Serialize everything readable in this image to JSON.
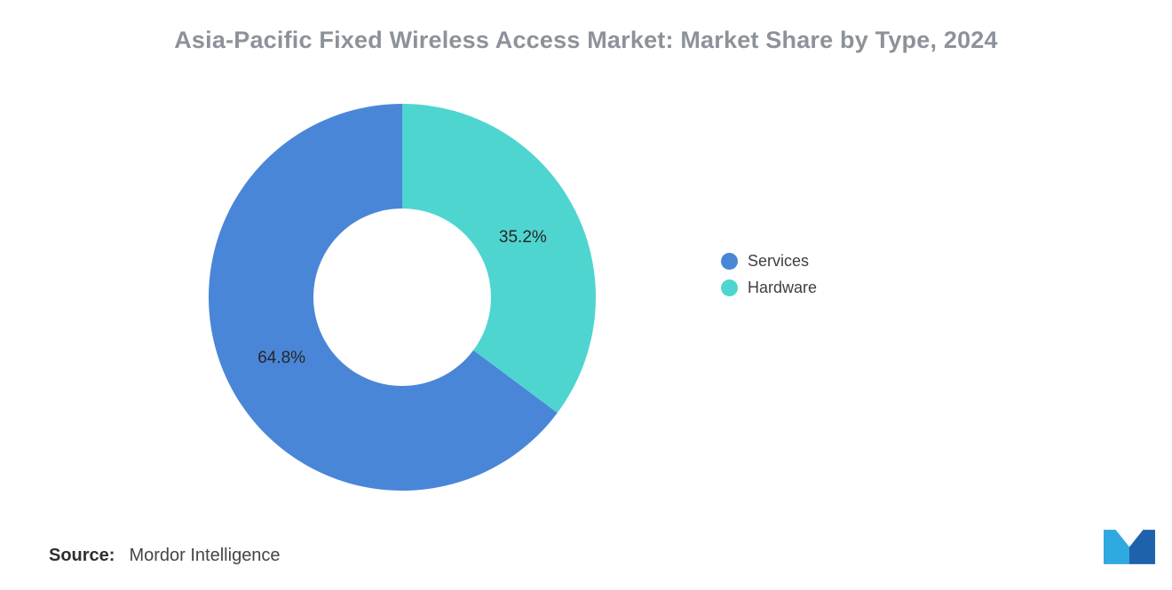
{
  "title": "Asia-Pacific Fixed Wireless Access Market: Market Share by Type, 2024",
  "source": {
    "label": "Source:",
    "value": "Mordor Intelligence"
  },
  "logo": {
    "name": "mordor-intelligence-logo",
    "color_light": "#2FA9E0",
    "color_dark": "#1E62AC"
  },
  "chart_data": {
    "type": "pie",
    "subtype": "donut",
    "title": "Asia-Pacific Fixed Wireless Access Market: Market Share by Type, 2024",
    "segments": [
      {
        "label": "Services",
        "value": 64.8,
        "color": "#4A86D8"
      },
      {
        "label": "Hardware",
        "value": 35.2,
        "color": "#4FD5CF"
      }
    ],
    "draw_order": [
      "Hardware",
      "Services"
    ],
    "start_angle_deg": -90,
    "direction": "clockwise",
    "inner_radius_ratio": 0.46,
    "label_suffix": "%",
    "legend_position": "right",
    "data_labels_visible": true
  }
}
